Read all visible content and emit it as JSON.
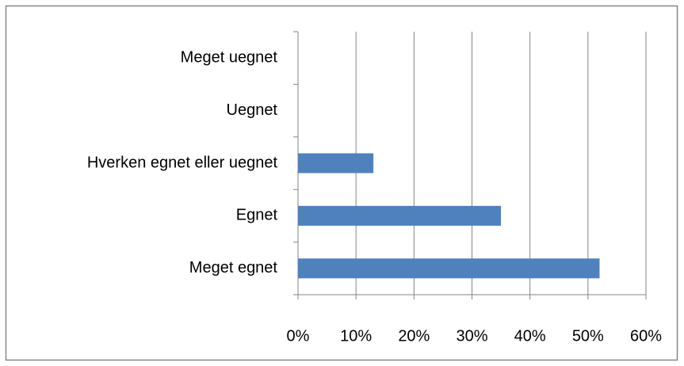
{
  "chart_data": {
    "type": "bar",
    "orientation": "horizontal",
    "categories": [
      "Meget egnet",
      "Egnet",
      "Hverken egnet eller uegnet",
      "Uegnet",
      "Meget uegnet"
    ],
    "values": [
      52,
      35,
      13,
      0,
      0
    ],
    "color": "#4f81bd",
    "xlim": [
      0,
      60
    ],
    "xticks": [
      {
        "value": 0,
        "label": "0%"
      },
      {
        "value": 10,
        "label": "10%"
      },
      {
        "value": 20,
        "label": "20%"
      },
      {
        "value": 30,
        "label": "30%"
      },
      {
        "value": 40,
        "label": "40%"
      },
      {
        "value": 50,
        "label": "50%"
      },
      {
        "value": 60,
        "label": "60%"
      }
    ],
    "grid": true
  }
}
